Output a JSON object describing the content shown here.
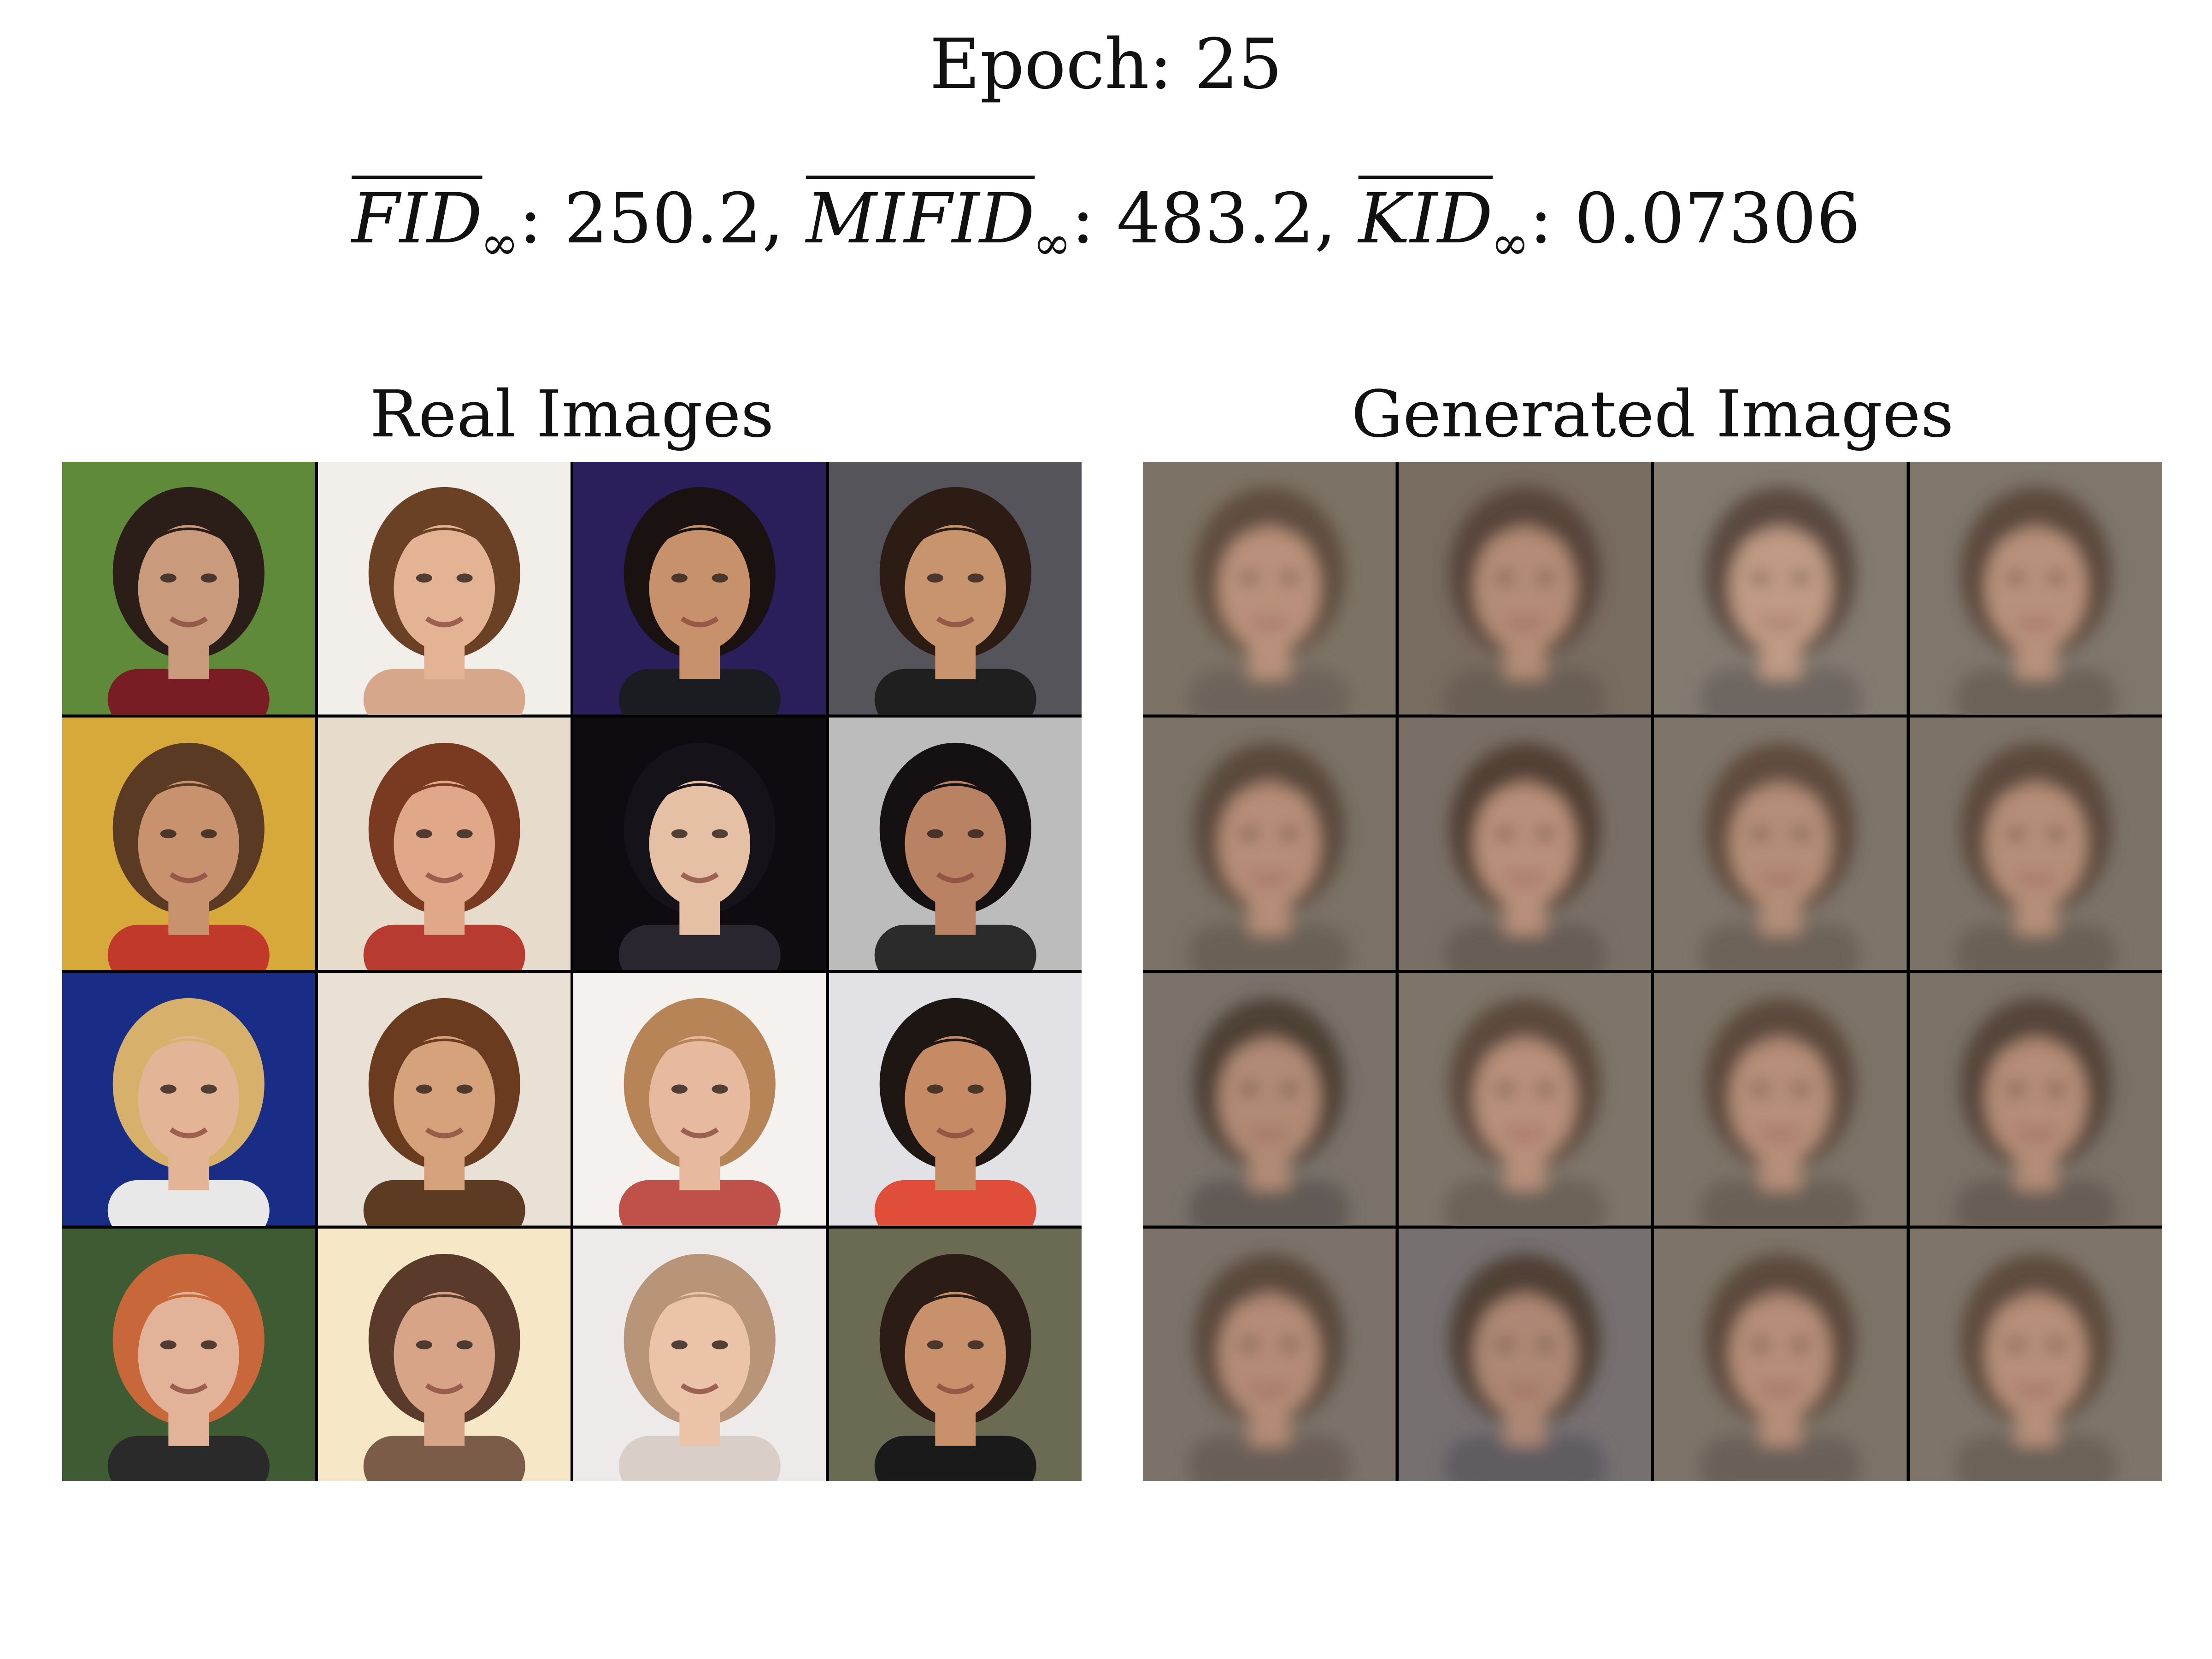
{
  "epoch_text": "Epoch: 25",
  "metrics": [
    {
      "name": "FID",
      "subscript": "∞",
      "value": "250.2"
    },
    {
      "name": "MIFID",
      "subscript": "∞",
      "value": "483.2"
    },
    {
      "name": "KID",
      "subscript": "∞",
      "value": "0.07306"
    }
  ],
  "panels": {
    "real": {
      "title": "Real Images",
      "tiles": [
        {
          "bg": "#5f8a3a",
          "skin": "#c99a7c",
          "hair": "#2b1d17",
          "accent": "#7a1c24"
        },
        {
          "bg": "#f2eeea",
          "skin": "#e3b394",
          "hair": "#6b4126",
          "accent": "#d6a78a"
        },
        {
          "bg": "#2a1f5a",
          "skin": "#c7916c",
          "hair": "#1a1210",
          "accent": "#1b1b22"
        },
        {
          "bg": "#55545a",
          "skin": "#c8946d",
          "hair": "#2d1c14",
          "accent": "#1f1f1f"
        },
        {
          "bg": "#d7a93a",
          "skin": "#c9926e",
          "hair": "#5a3a22",
          "accent": "#c0392b"
        },
        {
          "bg": "#e7dccb",
          "skin": "#e0a888",
          "hair": "#7a3a22",
          "accent": "#b83b32"
        },
        {
          "bg": "#0e0c10",
          "skin": "#e6c0a4",
          "hair": "#15121a",
          "accent": "#2a2630"
        },
        {
          "bg": "#bcbcbc",
          "skin": "#b98363",
          "hair": "#151112",
          "accent": "#2b2b2b"
        },
        {
          "bg": "#1a2d86",
          "skin": "#e4b496",
          "hair": "#d7b06c",
          "accent": "#e8e8e8"
        },
        {
          "bg": "#e9e1d6",
          "skin": "#d6a27b",
          "hair": "#6b3b1f",
          "accent": "#5d3a22"
        },
        {
          "bg": "#f4f1ef",
          "skin": "#e7b99e",
          "hair": "#b78457",
          "accent": "#c0504a"
        },
        {
          "bg": "#e2e2e6",
          "skin": "#c68a64",
          "hair": "#1d1613",
          "accent": "#e04e3a"
        },
        {
          "bg": "#3f5b33",
          "skin": "#e2b399",
          "hair": "#c8683a",
          "accent": "#2a2a2a"
        },
        {
          "bg": "#f6e7c6",
          "skin": "#d8a488",
          "hair": "#5a3a2a",
          "accent": "#7a5c48"
        },
        {
          "bg": "#eeeaea",
          "skin": "#ebc3a9",
          "hair": "#b89578",
          "accent": "#d9cfc8"
        },
        {
          "bg": "#6b6a52",
          "skin": "#c9906c",
          "hair": "#2b1c15",
          "accent": "#1a1a1a"
        }
      ]
    },
    "generated": {
      "title": "Generated Images",
      "tiles": [
        {
          "bg": "#7d7266",
          "skin": "#b9917a",
          "hair": "#5f4d40",
          "accent": "#6e645a"
        },
        {
          "bg": "#786b60",
          "skin": "#b48c76",
          "hair": "#56453a",
          "accent": "#6a5e54"
        },
        {
          "bg": "#837a70",
          "skin": "#bf9a84",
          "hair": "#5a4a3f",
          "accent": "#6e6660"
        },
        {
          "bg": "#7f766c",
          "skin": "#b8917b",
          "hair": "#5b4a3e",
          "accent": "#6c6258"
        },
        {
          "bg": "#7b7166",
          "skin": "#b68d77",
          "hair": "#5a483c",
          "accent": "#6b6057"
        },
        {
          "bg": "#7a6f66",
          "skin": "#b88f79",
          "hair": "#514135",
          "accent": "#675d55"
        },
        {
          "bg": "#7e746a",
          "skin": "#b48d78",
          "hair": "#5e4b3e",
          "accent": "#6d6259"
        },
        {
          "bg": "#7c7268",
          "skin": "#b58e78",
          "hair": "#5c493c",
          "accent": "#6b6057"
        },
        {
          "bg": "#7a726a",
          "skin": "#b08a76",
          "hair": "#4e3f35",
          "accent": "#625a54"
        },
        {
          "bg": "#7e7469",
          "skin": "#b78f7a",
          "hair": "#5c4a3d",
          "accent": "#6c6258"
        },
        {
          "bg": "#7d7368",
          "skin": "#b68e79",
          "hair": "#5b493c",
          "accent": "#6a6057"
        },
        {
          "bg": "#7b7167",
          "skin": "#b48c77",
          "hair": "#55443a",
          "accent": "#675d54"
        },
        {
          "bg": "#7c7269",
          "skin": "#b38b77",
          "hair": "#5a483c",
          "accent": "#6a5f56"
        },
        {
          "bg": "#767071",
          "skin": "#ad8774",
          "hair": "#4f3f36",
          "accent": "#5e5c62"
        },
        {
          "bg": "#7d7368",
          "skin": "#b58d78",
          "hair": "#5c4a3e",
          "accent": "#6b6158"
        },
        {
          "bg": "#7e746a",
          "skin": "#b68e79",
          "hair": "#5d4b3e",
          "accent": "#6c6259"
        }
      ]
    }
  }
}
